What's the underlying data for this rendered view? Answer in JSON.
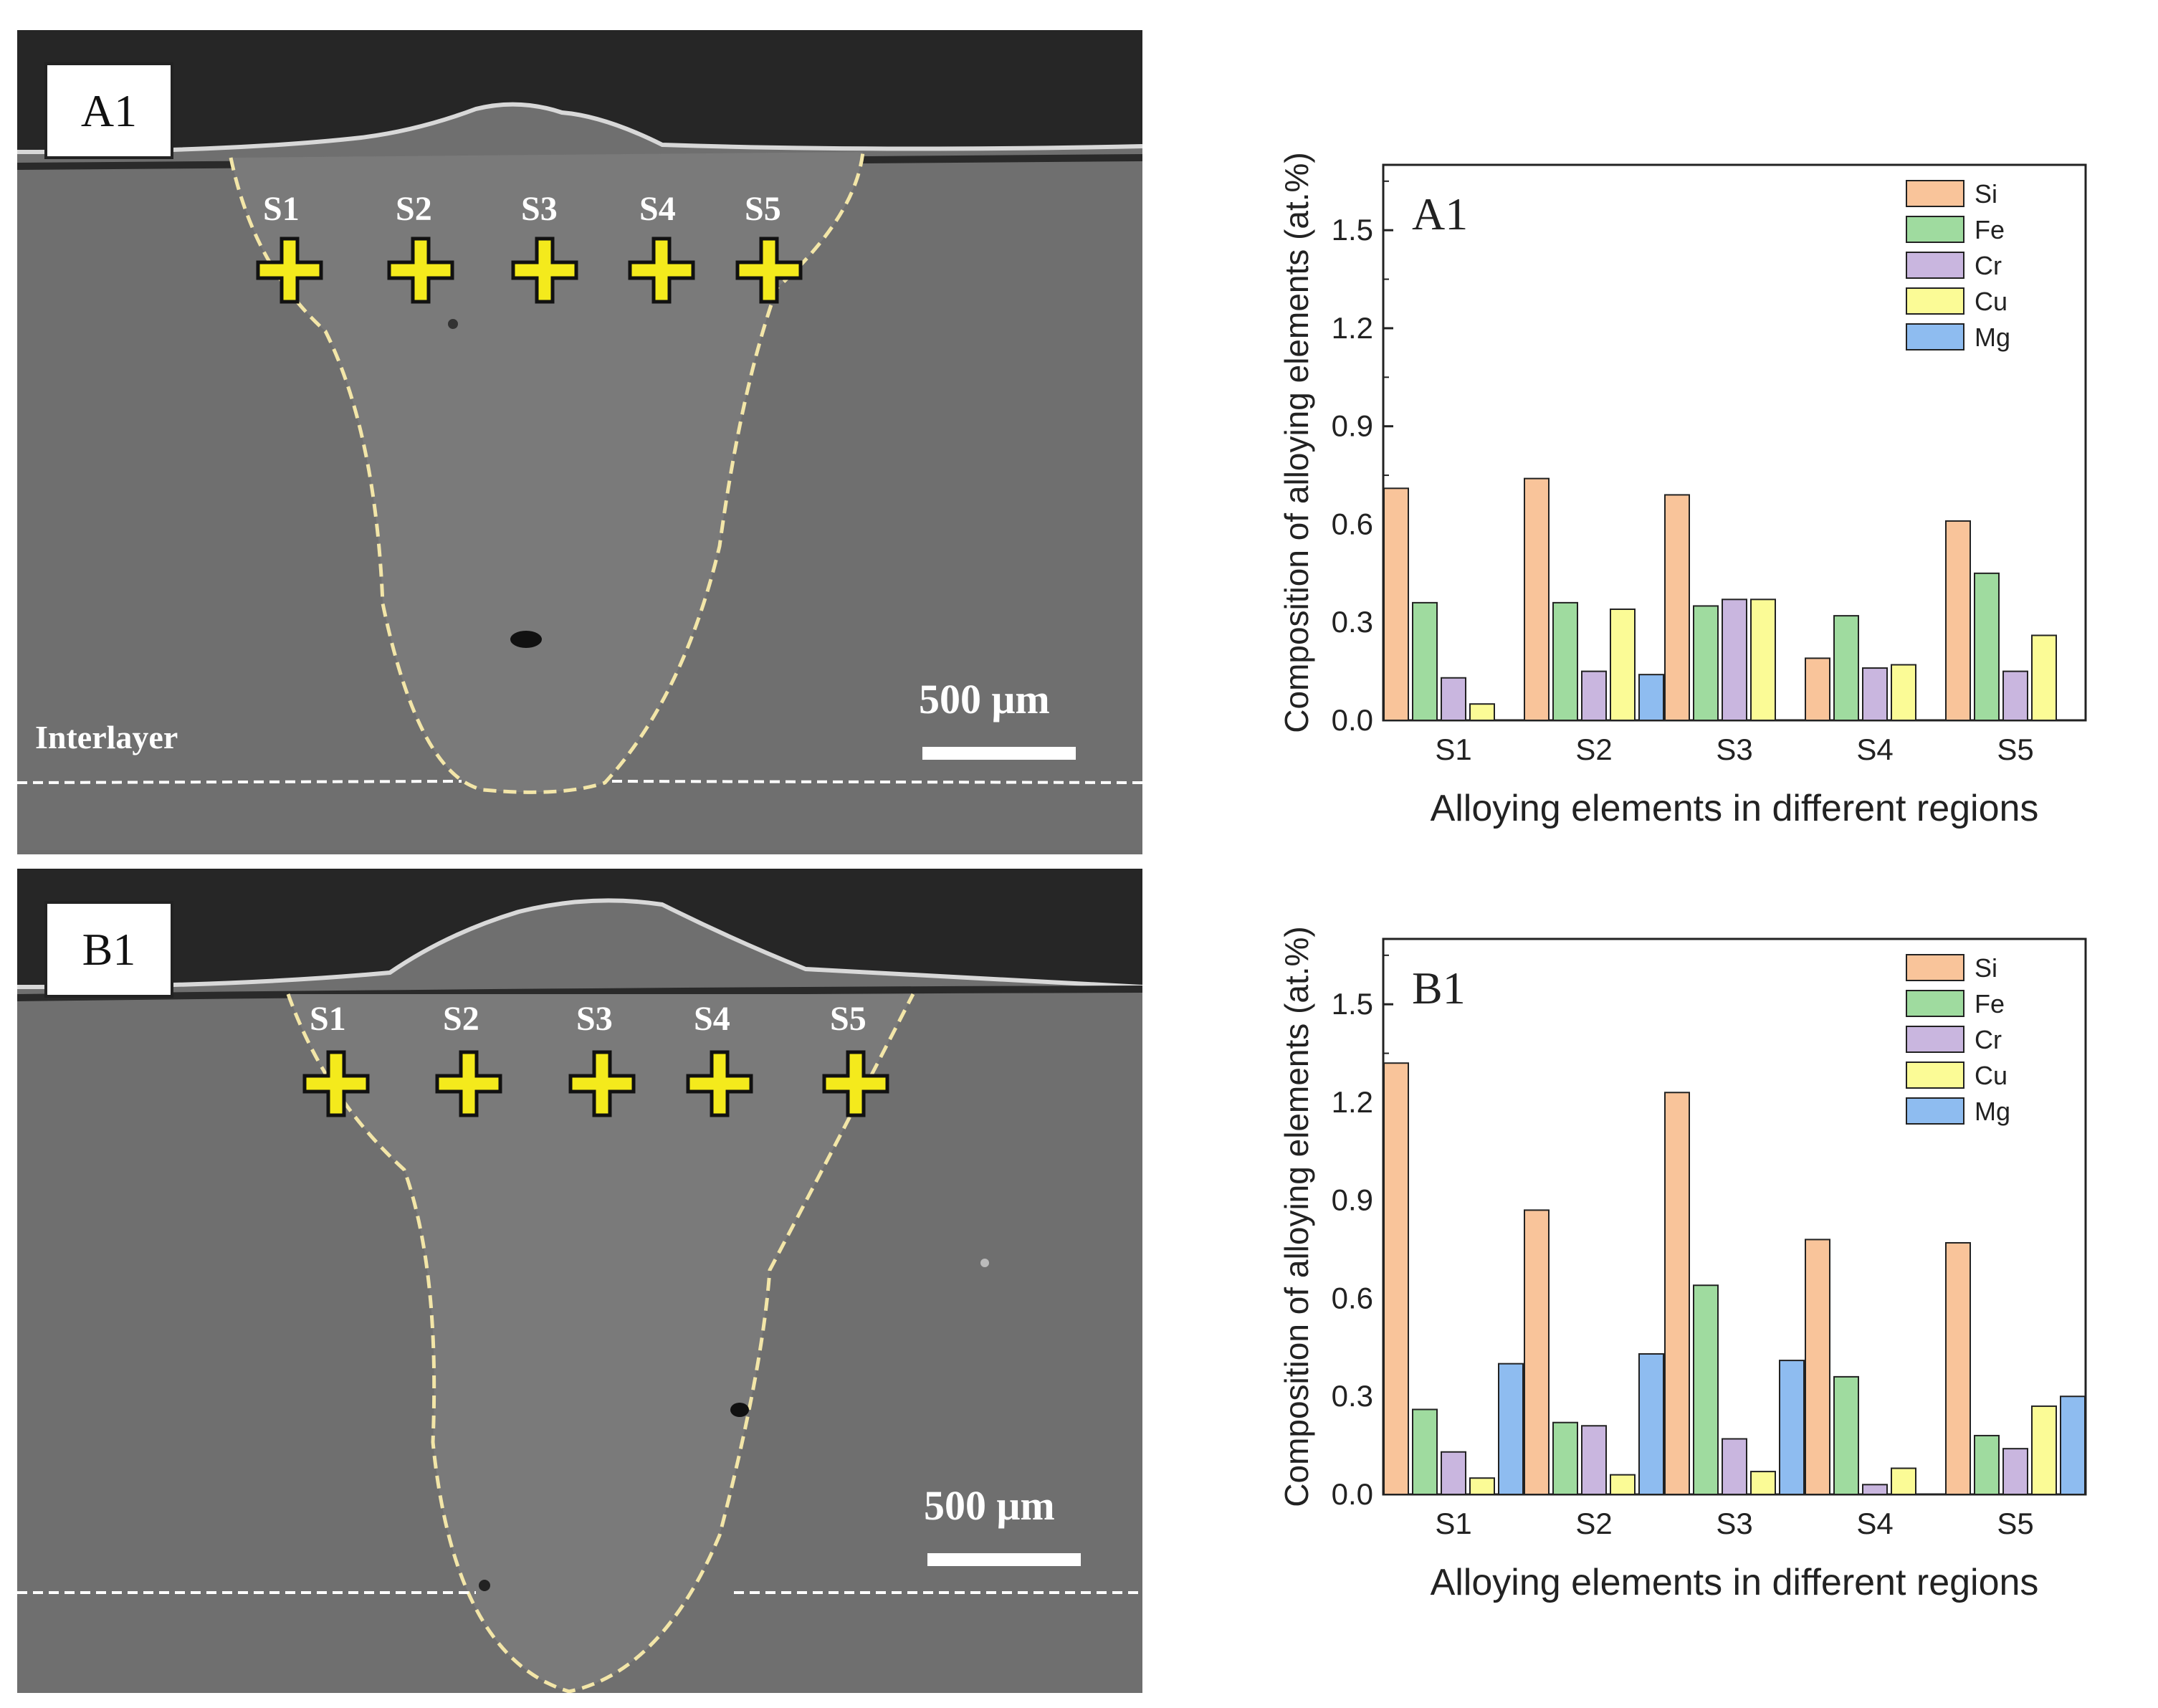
{
  "panels": [
    {
      "id": "A1",
      "image": {
        "label": "A1",
        "point_labels": [
          "S1",
          "S2",
          "S3",
          "S4",
          "S5"
        ],
        "scale_bar": "500 μm",
        "layer_label": "Interlayer"
      }
    },
    {
      "id": "B1",
      "image": {
        "label": "B1",
        "point_labels": [
          "S1",
          "S2",
          "S3",
          "S4",
          "S5"
        ],
        "scale_bar": "500 μm",
        "layer_label": ""
      }
    }
  ],
  "colors": {
    "Si": "#f9c49a",
    "Fe": "#9fdb9f",
    "Cr": "#c9b6df",
    "Cu": "#fbfb96",
    "Mg": "#8ebcf0",
    "marker": "#f4ea1c"
  },
  "chart_data": [
    {
      "type": "bar",
      "panel_label": "A1",
      "categories": [
        "S1",
        "S2",
        "S3",
        "S4",
        "S5"
      ],
      "series": [
        {
          "name": "Si",
          "values": [
            0.71,
            0.74,
            0.69,
            0.19,
            0.61
          ]
        },
        {
          "name": "Fe",
          "values": [
            0.36,
            0.36,
            0.35,
            0.32,
            0.45
          ]
        },
        {
          "name": "Cr",
          "values": [
            0.13,
            0.15,
            0.37,
            0.16,
            0.15
          ]
        },
        {
          "name": "Cu",
          "values": [
            0.05,
            0.34,
            0.37,
            0.17,
            0.26
          ]
        },
        {
          "name": "Mg",
          "values": [
            0,
            0.14,
            0,
            0,
            0
          ]
        }
      ],
      "xlabel": "Alloying elements in different regions",
      "ylabel": "Composition of alloying elements (at.%)",
      "ylim": [
        0,
        1.7
      ],
      "yticks": [
        "0.0",
        "0.3",
        "0.6",
        "0.9",
        "1.2",
        "1.5"
      ],
      "legend": "top-right",
      "grid": false
    },
    {
      "type": "bar",
      "panel_label": "B1",
      "categories": [
        "S1",
        "S2",
        "S3",
        "S4",
        "S5"
      ],
      "series": [
        {
          "name": "Si",
          "values": [
            1.32,
            0.87,
            1.23,
            0.78,
            0.77
          ]
        },
        {
          "name": "Fe",
          "values": [
            0.26,
            0.22,
            0.64,
            0.36,
            0.18
          ]
        },
        {
          "name": "Cr",
          "values": [
            0.13,
            0.21,
            0.17,
            0.03,
            0.14
          ]
        },
        {
          "name": "Cu",
          "values": [
            0.05,
            0.06,
            0.07,
            0.08,
            0.27
          ]
        },
        {
          "name": "Mg",
          "values": [
            0.4,
            0.43,
            0.41,
            0,
            0.3
          ]
        }
      ],
      "xlabel": "Alloying elements in different regions",
      "ylabel": "Composition of alloying elements (at.%)",
      "ylim": [
        0,
        1.7
      ],
      "yticks": [
        "0.0",
        "0.3",
        "0.6",
        "0.9",
        "1.2",
        "1.5"
      ],
      "legend": "top-right",
      "grid": false
    }
  ]
}
